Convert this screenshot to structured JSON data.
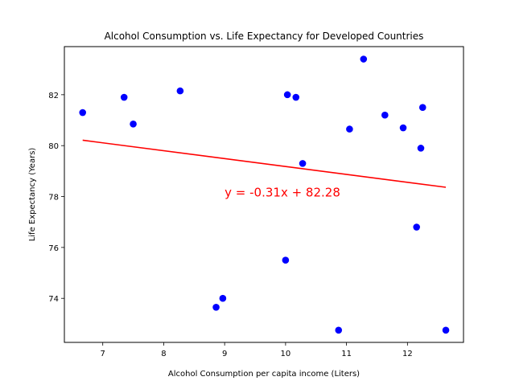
{
  "chart_data": {
    "type": "scatter",
    "title": "Alcohol Consumption vs. Life Expectancy for Developed Countries",
    "xlabel": "Alcohol Consumption per capita income (Liters)",
    "ylabel": "Life Expectancy (Years)",
    "xlim": [
      6.37,
      12.92
    ],
    "ylim": [
      72.27,
      83.89
    ],
    "xticks": [
      7,
      8,
      9,
      10,
      11,
      12
    ],
    "yticks": [
      74,
      76,
      78,
      80,
      82
    ],
    "grid": false,
    "legend": false,
    "marker_color": "#0000ff",
    "line_color": "#ff0000",
    "points": [
      {
        "x": 6.67,
        "y": 81.3
      },
      {
        "x": 7.35,
        "y": 81.9
      },
      {
        "x": 7.5,
        "y": 80.85
      },
      {
        "x": 8.27,
        "y": 82.15
      },
      {
        "x": 8.86,
        "y": 73.65
      },
      {
        "x": 8.97,
        "y": 74.0
      },
      {
        "x": 10.0,
        "y": 75.5
      },
      {
        "x": 10.03,
        "y": 82.0
      },
      {
        "x": 10.17,
        "y": 81.9
      },
      {
        "x": 10.28,
        "y": 79.3
      },
      {
        "x": 10.87,
        "y": 72.75
      },
      {
        "x": 11.05,
        "y": 80.65
      },
      {
        "x": 11.28,
        "y": 83.4
      },
      {
        "x": 11.63,
        "y": 81.2
      },
      {
        "x": 11.93,
        "y": 80.7
      },
      {
        "x": 12.15,
        "y": 76.8
      },
      {
        "x": 12.22,
        "y": 79.9
      },
      {
        "x": 12.25,
        "y": 81.5
      },
      {
        "x": 12.63,
        "y": 72.75
      }
    ],
    "regression": {
      "slope": -0.31,
      "intercept": 82.28,
      "x_range": [
        6.67,
        12.63
      ],
      "equation_label": "y = -0.31x + 82.28",
      "label_position": {
        "x": 9.0,
        "y": 78.0
      }
    }
  }
}
